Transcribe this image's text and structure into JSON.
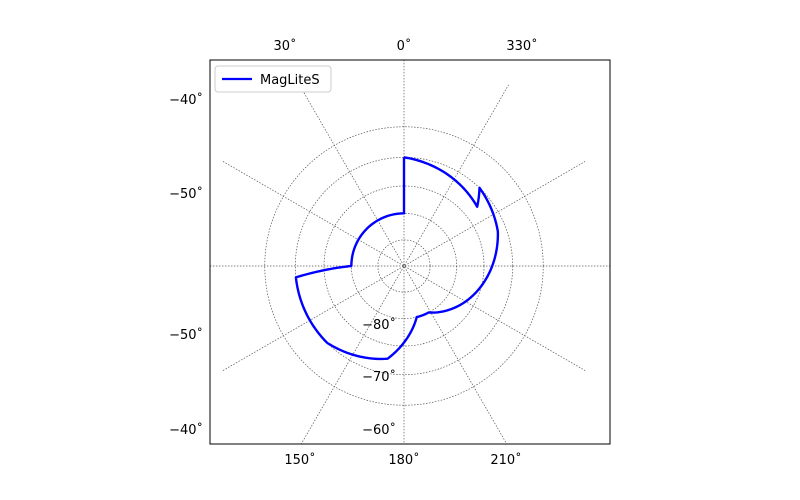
{
  "chart_data": {
    "type": "polar-map",
    "projection": "south-polar stereographic",
    "legend": {
      "position": "top-left",
      "entries": [
        {
          "label": "MagLiteS",
          "color": "#0000ff"
        }
      ]
    },
    "series": [
      {
        "name": "MagLiteS",
        "color": "#0000ff",
        "points": [
          {
            "ra": 0,
            "dec": -50
          },
          {
            "ra": 0,
            "dec": -70
          },
          {
            "ra": 90,
            "dec": -70
          },
          {
            "ra": 96,
            "dec": -50
          },
          {
            "ra": 135,
            "dec": -50
          },
          {
            "ra": 170,
            "dec": -55
          },
          {
            "ra": 194,
            "dec": -70
          },
          {
            "ra": 208,
            "dec": -70
          },
          {
            "ra": 241,
            "dec": -63
          },
          {
            "ra": 290,
            "dec": -53
          },
          {
            "ra": 316,
            "dec": -50
          },
          {
            "ra": 309,
            "dec": -55
          },
          {
            "ra": 360,
            "dec": -50
          }
        ]
      }
    ],
    "top_ra_labels": [
      "30˚",
      "0˚",
      "330˚"
    ],
    "bottom_ra_labels": [
      "150˚",
      "180˚",
      "210˚"
    ],
    "left_dec_labels": [
      "−40˚",
      "−50˚",
      "−50˚",
      "−40˚"
    ],
    "inner_dec_labels": [
      "−80˚",
      "−70˚",
      "−60˚"
    ],
    "dec_grid": [
      -80,
      -70,
      -60,
      -50,
      -40
    ],
    "ra_grid_step_deg": 30,
    "grid": true
  }
}
